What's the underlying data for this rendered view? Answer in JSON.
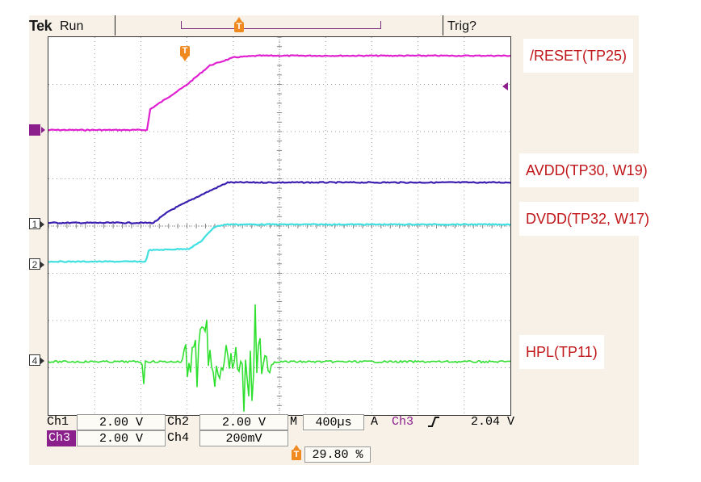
{
  "top_bar": {
    "brand": "Tek",
    "acquisition_state": "Run",
    "trigger_state": "Trig?"
  },
  "trigger_marker_glyph": "T",
  "channels": [
    {
      "id": "3",
      "color": "#e020d0",
      "marker_style": "solid"
    },
    {
      "id": "1",
      "color": "#3a1fb0",
      "marker_style": "outline"
    },
    {
      "id": "2",
      "color": "#40e0e0",
      "marker_style": "outline"
    },
    {
      "id": "4",
      "color": "#30e030",
      "marker_style": "outline"
    }
  ],
  "readouts": {
    "ch1_name": "Ch1",
    "ch1_scale": "2.00 V",
    "ch2_name": "Ch2",
    "ch2_scale": "2.00 V",
    "ch3_name": "Ch3",
    "ch3_scale": "2.00 V",
    "ch4_name": "Ch4",
    "ch4_scale": "200mV",
    "timebase_prefix": "M",
    "timebase": "400µs",
    "trigger_mode": "A",
    "trigger_source": "Ch3",
    "trigger_slope_icon": "rising-edge-icon",
    "trigger_level": "2.04 V",
    "trigger_position": "29.80 %"
  },
  "annotations": [
    {
      "text": "/RESET(TP25)",
      "color": "#c0161a"
    },
    {
      "text": "AVDD(TP30, W19)",
      "color": "#c0161a"
    },
    {
      "text": "DVDD(TP32, W17)",
      "color": "#c0161a"
    },
    {
      "text": "HPL(TP11)",
      "color": "#c0161a"
    }
  ]
}
